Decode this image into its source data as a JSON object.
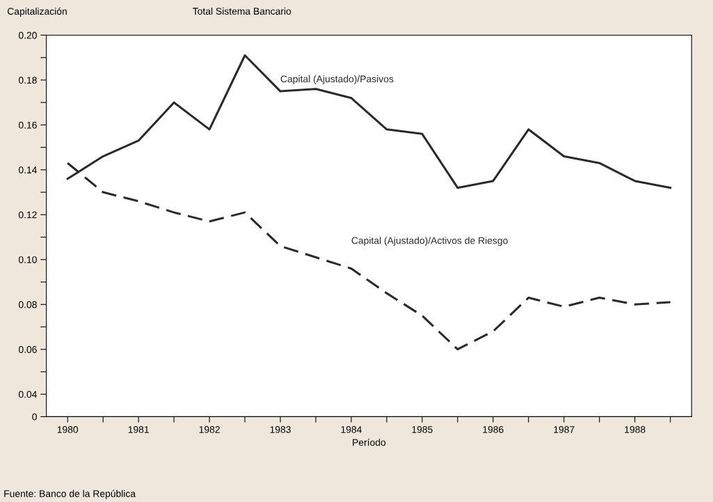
{
  "chart_data": {
    "type": "line",
    "title": "Total Sistema Bancario",
    "ylabel": "Capitalización",
    "xlabel": "Período",
    "annotations": [
      "Fuente: Banco de la República"
    ],
    "x": [
      1980,
      1980.5,
      1981,
      1981.5,
      1982,
      1982.5,
      1983,
      1983.5,
      1984,
      1984.5,
      1985,
      1985.5,
      1986,
      1986.5,
      1987,
      1987.5,
      1988,
      1988.5
    ],
    "series": [
      {
        "name": "Capital (Ajustado)/Pasivos",
        "color": "#2a2a2a",
        "line_style": "solid",
        "values": [
          0.136,
          0.146,
          0.153,
          0.17,
          0.158,
          0.191,
          0.175,
          0.176,
          0.172,
          0.158,
          0.156,
          0.132,
          0.135,
          0.158,
          0.146,
          0.143,
          0.135,
          0.132
        ]
      },
      {
        "name": "Capital (Ajustado)/Activos de Riesgo",
        "color": "#2a2a2a",
        "line_style": "dashed",
        "values": [
          0.143,
          0.13,
          0.126,
          0.121,
          0.117,
          0.121,
          0.106,
          0.101,
          0.096,
          0.085,
          0.075,
          0.06,
          0.068,
          0.083,
          0.079,
          0.083,
          0.08,
          0.081
        ]
      }
    ],
    "xlim": [
      1979.7,
      1988.8
    ],
    "xticks": [
      1980,
      {
        "value": 1980.5,
        "label": null
      },
      1981,
      {
        "value": 1981.5,
        "label": null
      },
      1982,
      {
        "value": 1982.5,
        "label": null
      },
      1983,
      {
        "value": 1983.5,
        "label": null
      },
      1984,
      {
        "value": 1984.5,
        "label": null
      },
      1985,
      {
        "value": 1985.5,
        "label": null
      },
      1986,
      {
        "value": 1986.5,
        "label": null
      },
      1987,
      {
        "value": 1987.5,
        "label": null
      },
      1988,
      {
        "value": 1988.5,
        "label": null
      }
    ],
    "ylim": [
      0.03,
      0.2
    ],
    "yticks": [
      {
        "value": 0.03,
        "label": "0"
      },
      {
        "value": 0.04,
        "label": "0.04"
      },
      {
        "value": 0.05,
        "label": null
      },
      {
        "value": 0.06,
        "label": "0.06"
      },
      {
        "value": 0.07,
        "label": null
      },
      {
        "value": 0.08,
        "label": "0.08"
      },
      {
        "value": 0.09,
        "label": null
      },
      {
        "value": 0.1,
        "label": "0.10"
      },
      {
        "value": 0.11,
        "label": null
      },
      {
        "value": 0.12,
        "label": "0.12"
      },
      {
        "value": 0.13,
        "label": null
      },
      {
        "value": 0.14,
        "label": "0.14"
      },
      {
        "value": 0.15,
        "label": null
      },
      {
        "value": 0.16,
        "label": "0.16"
      },
      {
        "value": 0.17,
        "label": null
      },
      {
        "value": 0.18,
        "label": "0.18"
      },
      {
        "value": 0.19,
        "label": null
      },
      {
        "value": 0.2,
        "label": "0.20"
      }
    ],
    "grid": false,
    "legend": false
  }
}
